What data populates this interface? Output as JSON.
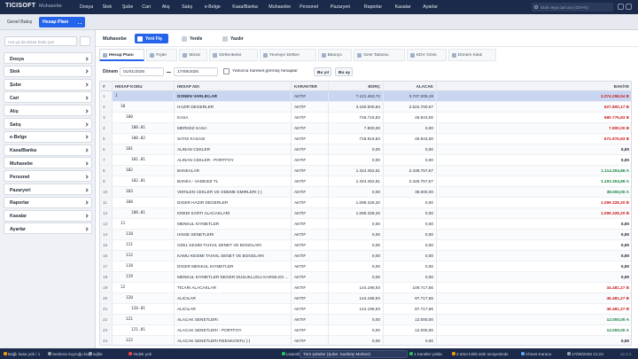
{
  "topbar": {
    "logo": "TICISOFT",
    "app": "Muhasebe",
    "menu": [
      "Dosya",
      "Stok",
      "Şube",
      "Cari",
      "Alış",
      "Satış",
      "e-Belge",
      "Kasa/Banka",
      "Muhasebe",
      "Personel",
      "Pazaryeri",
      "Raporlar",
      "Kasalar",
      "Ayarlar"
    ],
    "search": "Stok veya cari ara (Ctrl+K)"
  },
  "tabs": [
    "Genel Bakış",
    "Hesap Planı"
  ],
  "sidebar": {
    "search": "Ara ya da ekran kodu yaz",
    "items": [
      "Dosya",
      "Stok",
      "Şube",
      "Cari",
      "Alış",
      "Satış",
      "e-Belge",
      "Kasa/Banka",
      "Muhasebe",
      "Personel",
      "Pazaryeri",
      "Raporlar",
      "Kasalar",
      "Ayarlar"
    ]
  },
  "toolbar": {
    "title": "Muhasebe",
    "buttons": [
      "Yeni Fiş",
      "Yenile",
      "Yazdır"
    ]
  },
  "subtabs": [
    "Hesap Planı",
    "Fişler",
    "Mizan",
    "Defterikebir",
    "Yevmiye Defteri",
    "Bilanço",
    "Gelir Tablosu",
    "KDV Özeti",
    "Dönem Kilidi"
  ],
  "filter": {
    "label": "Dönem",
    "start": "01/01/2026",
    "end": "17/09/2026",
    "checkbox": "Yalnızca hareket görmüş hesaplar",
    "buttons": [
      "Bu yıl",
      "Bu ay"
    ]
  },
  "table": {
    "columns": [
      "#",
      "HESAP KODU",
      "HESAP ADI",
      "KARAKTER",
      "BORÇ",
      "ALACAK",
      "BAKİYE"
    ],
    "rows": [
      [
        "1",
        "1",
        "DONEN VARLIKLAR",
        "AKTIF",
        "7.121.463,72",
        "3.747.205,19",
        "3.374.258,54 B"
      ],
      [
        "2",
        "10",
        "HAZIR DEGERLER",
        "AKTIF",
        "3.150.500,84",
        "2.522.700,67",
        "627.800,17 B"
      ],
      [
        "3",
        "100",
        "KASA",
        "AKTIF",
        "726.719,83",
        "45.943,00",
        "680.776,83 B"
      ],
      [
        "4",
        "100.01",
        "MERKEZ KASA",
        "AKTIF",
        "7.800,00",
        "0,00",
        "7.800,00 B"
      ],
      [
        "5",
        "100.02",
        "SATIS KASASI",
        "AKTIF",
        "718.919,83",
        "45.943,00",
        "672.976,83 B"
      ],
      [
        "6",
        "101",
        "ALINAN CEKLER",
        "AKTIF",
        "0,00",
        "0,00",
        "0,00"
      ],
      [
        "7",
        "101.01",
        "ALINAN CEKLER - PORTFOY",
        "AKTIF",
        "0,00",
        "0,00",
        "0,00"
      ],
      [
        "8",
        "102",
        "BANKALAR",
        "AKTIF",
        "1.324.452,81",
        "2.438.757,67",
        "1.114.304,86 A"
      ],
      [
        "9",
        "102.01",
        "BANKA - VADESIZ TL",
        "AKTIF",
        "1.324.452,81",
        "2.426.757,67",
        "1.102.304,86 A"
      ],
      [
        "10",
        "103",
        "VERILEN CEKLER VE ODEME EMIRLERI (-)",
        "AKTIF",
        "0,00",
        "38.000,00",
        "38.000,00 A"
      ],
      [
        "11",
        "108",
        "DIGER HAZIR DEGERLER",
        "AKTIF",
        "1.099.328,20",
        "0,00",
        "1.099.328,20 B"
      ],
      [
        "12",
        "108.01",
        "KREDI KARTI ALACAKLARI",
        "AKTIF",
        "1.099.328,20",
        "0,00",
        "1.099.328,20 B"
      ],
      [
        "13",
        "11",
        "MENKUL KIYMETLER",
        "AKTIF",
        "0,00",
        "0,00",
        "0,00"
      ],
      [
        "14",
        "110",
        "HISSE SENETLERI",
        "AKTIF",
        "0,00",
        "0,00",
        "0,00"
      ],
      [
        "15",
        "111",
        "OZEL KESIM TAHVIL SENET VE BONOLARI",
        "AKTIF",
        "0,00",
        "0,00",
        "0,00"
      ],
      [
        "16",
        "112",
        "KAMU KESIMI TAHVIL SENET VE BONOLARI",
        "AKTIF",
        "0,00",
        "0,00",
        "0,00"
      ],
      [
        "17",
        "118",
        "DIGER MENKUL KIYMETLER",
        "AKTIF",
        "0,00",
        "0,00",
        "0,00"
      ],
      [
        "18",
        "119",
        "MENKUL KIYMETLER DEGER DUSUKLUGU KARSILIGI ...",
        "AKTIF",
        "0,00",
        "0,00",
        "0,00"
      ],
      [
        "19",
        "12",
        "TICARI ALACAKLAR",
        "AKTIF",
        "144.198,93",
        "109.717,66",
        "34.481,27 B"
      ],
      [
        "20",
        "120",
        "ALICILAR",
        "AKTIF",
        "144.198,93",
        "97.717,66",
        "46.481,27 B"
      ],
      [
        "21",
        "120.01",
        "ALICILAR",
        "AKTIF",
        "144.198,93",
        "97.717,66",
        "46.481,27 B"
      ],
      [
        "22",
        "121",
        "ALACAK SENETLERI",
        "AKTIF",
        "0,00",
        "12.000,00",
        "12.000,00 A"
      ],
      [
        "23",
        "121.01",
        "ALACAK SENETLERI - PORTFOY",
        "AKTIF",
        "0,00",
        "12.000,00",
        "12.000,00 A"
      ],
      [
        "24",
        "122",
        "ALACAK SENETLERI REESKONTU (-)",
        "AKTIF",
        "0,00",
        "0,00",
        "0,00"
      ]
    ]
  },
  "status": {
    "items": [
      "Bağlı kasa yok / 1",
      "Senkron kuyruğu boş",
      "sqlite",
      "Yedek yok",
      "Lisanslı"
    ],
    "branch": "Tüm şubeler (Şube: Kadıköy Merkez)",
    "right": [
      "1 transfer yolda",
      "2 ürün kritik stok seviyesinde",
      "Ahmet Karaca",
      "17/09/2026 21:23"
    ],
    "version": "v2.0.2"
  }
}
